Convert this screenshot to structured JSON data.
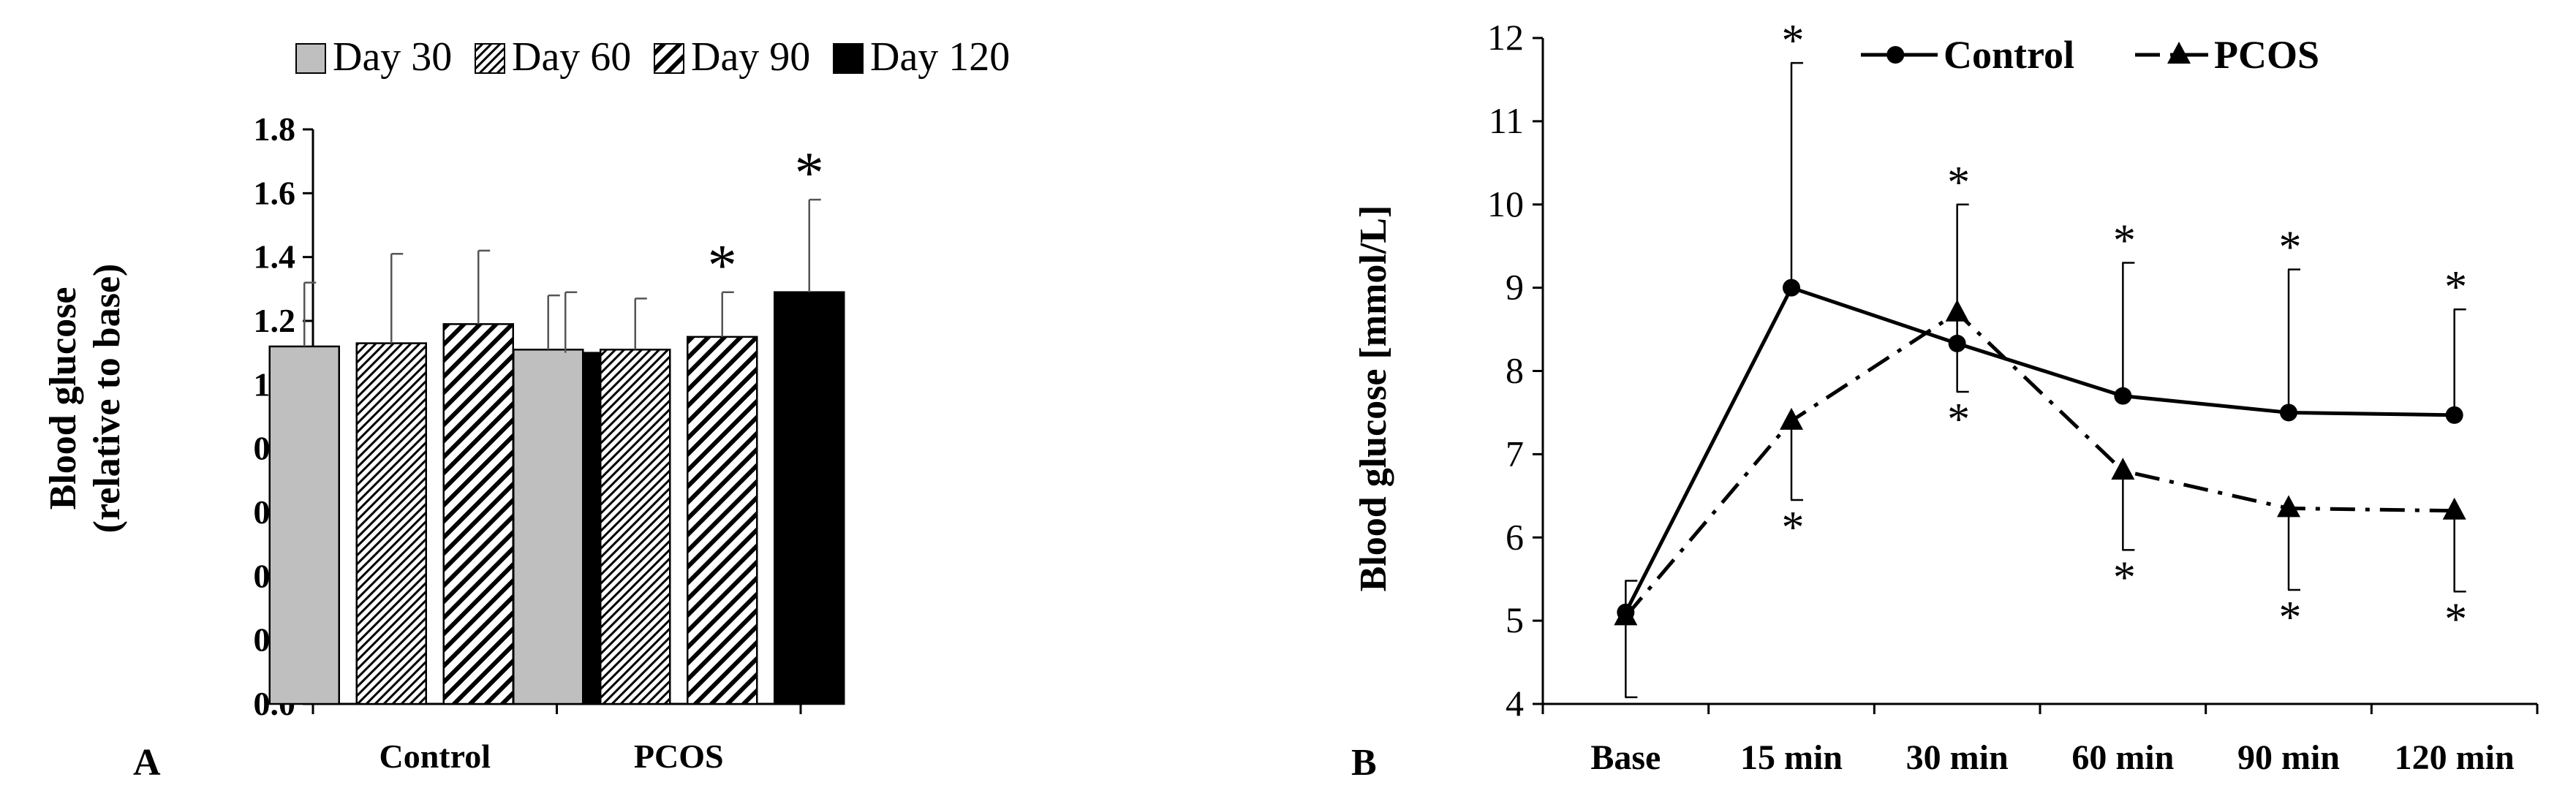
{
  "panel_labels": {
    "a": "A",
    "b": "B"
  },
  "chart_data": [
    {
      "type": "bar",
      "panel": "A",
      "categories": [
        "Control",
        "PCOS"
      ],
      "series": [
        {
          "name": "Day 30",
          "pattern": "solid-gray",
          "values": [
            1.12,
            1.11
          ],
          "errors": [
            0.2,
            0.17
          ],
          "significant": [
            false,
            false
          ]
        },
        {
          "name": "Day 60",
          "pattern": "fine-hatch",
          "values": [
            1.13,
            1.11
          ],
          "errors": [
            0.28,
            0.16
          ],
          "significant": [
            false,
            false
          ]
        },
        {
          "name": "Day 90",
          "pattern": "wide-hatch",
          "values": [
            1.19,
            1.15
          ],
          "errors": [
            0.23,
            0.14
          ],
          "significant": [
            false,
            true
          ]
        },
        {
          "name": "Day 120",
          "pattern": "solid-black",
          "values": [
            1.1,
            1.29
          ],
          "errors": [
            0.19,
            0.29
          ],
          "significant": [
            false,
            true
          ]
        }
      ],
      "significance_marker": "*",
      "ylabel_line1": "Blood glucose",
      "ylabel_line2": "(relative to base)",
      "ylim": [
        0,
        1.8
      ],
      "yticks": [
        "0.0",
        "0.2",
        "0.4",
        "0.6",
        "0.8",
        "1.0",
        "1.2",
        "1.4",
        "1.6",
        "1.8"
      ],
      "ytick_values": [
        0,
        0.2,
        0.4,
        0.6,
        0.8,
        1.0,
        1.2,
        1.4,
        1.6,
        1.8
      ],
      "legend_position": "top",
      "grid": false
    },
    {
      "type": "line",
      "panel": "B",
      "categories": [
        "Base",
        "15 min",
        "30 min",
        "60 min",
        "90 min",
        "120 min"
      ],
      "series": [
        {
          "name": "Control",
          "marker": "circle",
          "line": "solid",
          "values": [
            5.1,
            9.0,
            8.33,
            7.7,
            7.5,
            7.47
          ],
          "errors": [
            0.38,
            2.7,
            1.67,
            1.6,
            1.72,
            1.27
          ],
          "error_direction": "up",
          "significant": [
            false,
            true,
            true,
            true,
            true,
            true
          ]
        },
        {
          "name": "PCOS",
          "marker": "triangle",
          "line": "dash-dot",
          "values": [
            5.05,
            7.4,
            8.7,
            6.8,
            6.35,
            6.32
          ],
          "errors": [
            0.97,
            0.95,
            0.95,
            0.95,
            0.98,
            0.97
          ],
          "error_direction": "down",
          "significant": [
            false,
            true,
            true,
            true,
            true,
            true
          ]
        }
      ],
      "significance_marker": "*",
      "ylabel": "Blood glucose [mmol/L]",
      "ylim": [
        4,
        12
      ],
      "yticks": [
        "4",
        "5",
        "6",
        "7",
        "8",
        "9",
        "10",
        "11",
        "12"
      ],
      "ytick_values": [
        4,
        5,
        6,
        7,
        8,
        9,
        10,
        11,
        12
      ],
      "legend_position": "top",
      "grid": false
    }
  ]
}
